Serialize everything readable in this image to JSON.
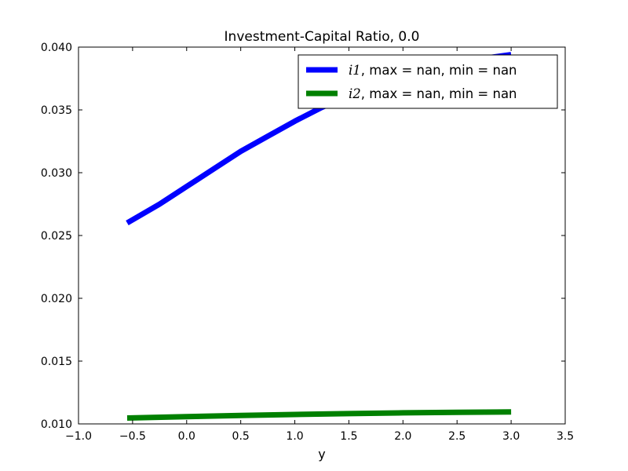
{
  "chart_data": {
    "type": "line",
    "title": "Investment-Capital Ratio, 0.0",
    "xlabel": "y",
    "ylabel": "",
    "xlim": [
      -1.0,
      3.5
    ],
    "ylim": [
      0.01,
      0.04
    ],
    "xticks": [
      -1.0,
      -0.5,
      0.0,
      0.5,
      1.0,
      1.5,
      2.0,
      2.5,
      3.0,
      3.5
    ],
    "xtick_labels": [
      "−1.0",
      "−0.5",
      "0.0",
      "0.5",
      "1.0",
      "1.5",
      "2.0",
      "2.5",
      "3.0",
      "3.5"
    ],
    "yticks": [
      0.01,
      0.015,
      0.02,
      0.025,
      0.03,
      0.035,
      0.04
    ],
    "ytick_labels": [
      "0.010",
      "0.015",
      "0.020",
      "0.025",
      "0.030",
      "0.035",
      "0.040"
    ],
    "grid": false,
    "legend_position": "top-right",
    "series": [
      {
        "name": "i1",
        "legend_suffix": ", max = nan, min = nan",
        "color": "#0000ff",
        "x": [
          -0.55,
          -0.25,
          0.0,
          0.25,
          0.5,
          0.75,
          1.0,
          1.25,
          1.5,
          1.75,
          2.0,
          2.25,
          2.5,
          2.75,
          3.0
        ],
        "y": [
          0.026,
          0.0275,
          0.0289,
          0.0303,
          0.0317,
          0.0329,
          0.0341,
          0.0352,
          0.0361,
          0.0369,
          0.0376,
          0.0382,
          0.0387,
          0.0391,
          0.0394
        ]
      },
      {
        "name": "i2",
        "legend_suffix": ", max = nan, min = nan",
        "color": "#008000",
        "x": [
          -0.55,
          0.0,
          0.5,
          1.0,
          1.5,
          2.0,
          2.5,
          3.0
        ],
        "y": [
          0.01047,
          0.01058,
          0.01067,
          0.01075,
          0.01082,
          0.01088,
          0.01092,
          0.01095
        ]
      }
    ]
  }
}
